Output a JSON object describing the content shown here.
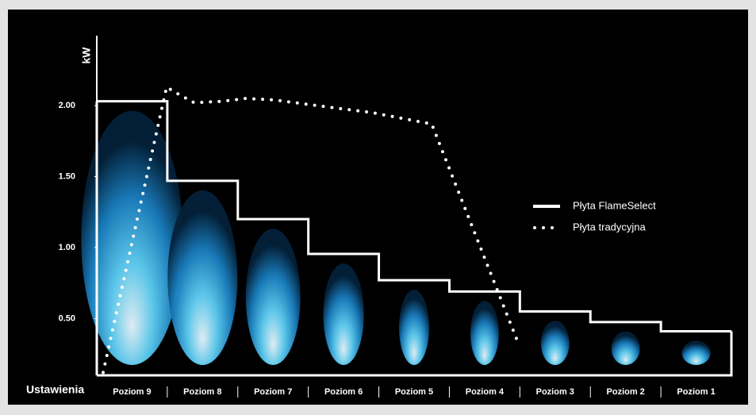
{
  "chart_data": {
    "type": "step",
    "y_label": "kW",
    "x_label": "Ustawienia",
    "categories": [
      "Poziom 9",
      "Poziom 8",
      "Poziom 7",
      "Poziom 6",
      "Poziom 5",
      "Poziom 4",
      "Poziom 3",
      "Poziom 2",
      "Poziom 1"
    ],
    "ylim": [
      0.1,
      2.45
    ],
    "yticks": [
      {
        "value": 0.5,
        "label": "0.50"
      },
      {
        "value": 1,
        "label": "1.00"
      },
      {
        "value": 1.5,
        "label": "1.50"
      },
      {
        "value": 2,
        "label": "2.00"
      }
    ],
    "legend": "right",
    "series": [
      {
        "name": "Płyta FlameSelect",
        "color": "#ffffff",
        "style": "solid",
        "values": [
          2.03,
          1.47,
          1.2,
          0.955,
          0.77,
          0.69,
          0.55,
          0.475,
          0.41
        ]
      },
      {
        "name": "Płyta tradycyjna",
        "color": "#ffffff",
        "style": "dotted",
        "x": [
          0.09,
          0.99,
          1.16,
          1.38,
          1.78,
          2.11,
          2.51,
          3.12,
          3.91,
          4.75,
          5.99
        ],
        "values": [
          0.12,
          2.13,
          2.08,
          2.02,
          2.03,
          2.05,
          2.04,
          2.0,
          1.95,
          1.87,
          0.31
        ]
      }
    ]
  }
}
